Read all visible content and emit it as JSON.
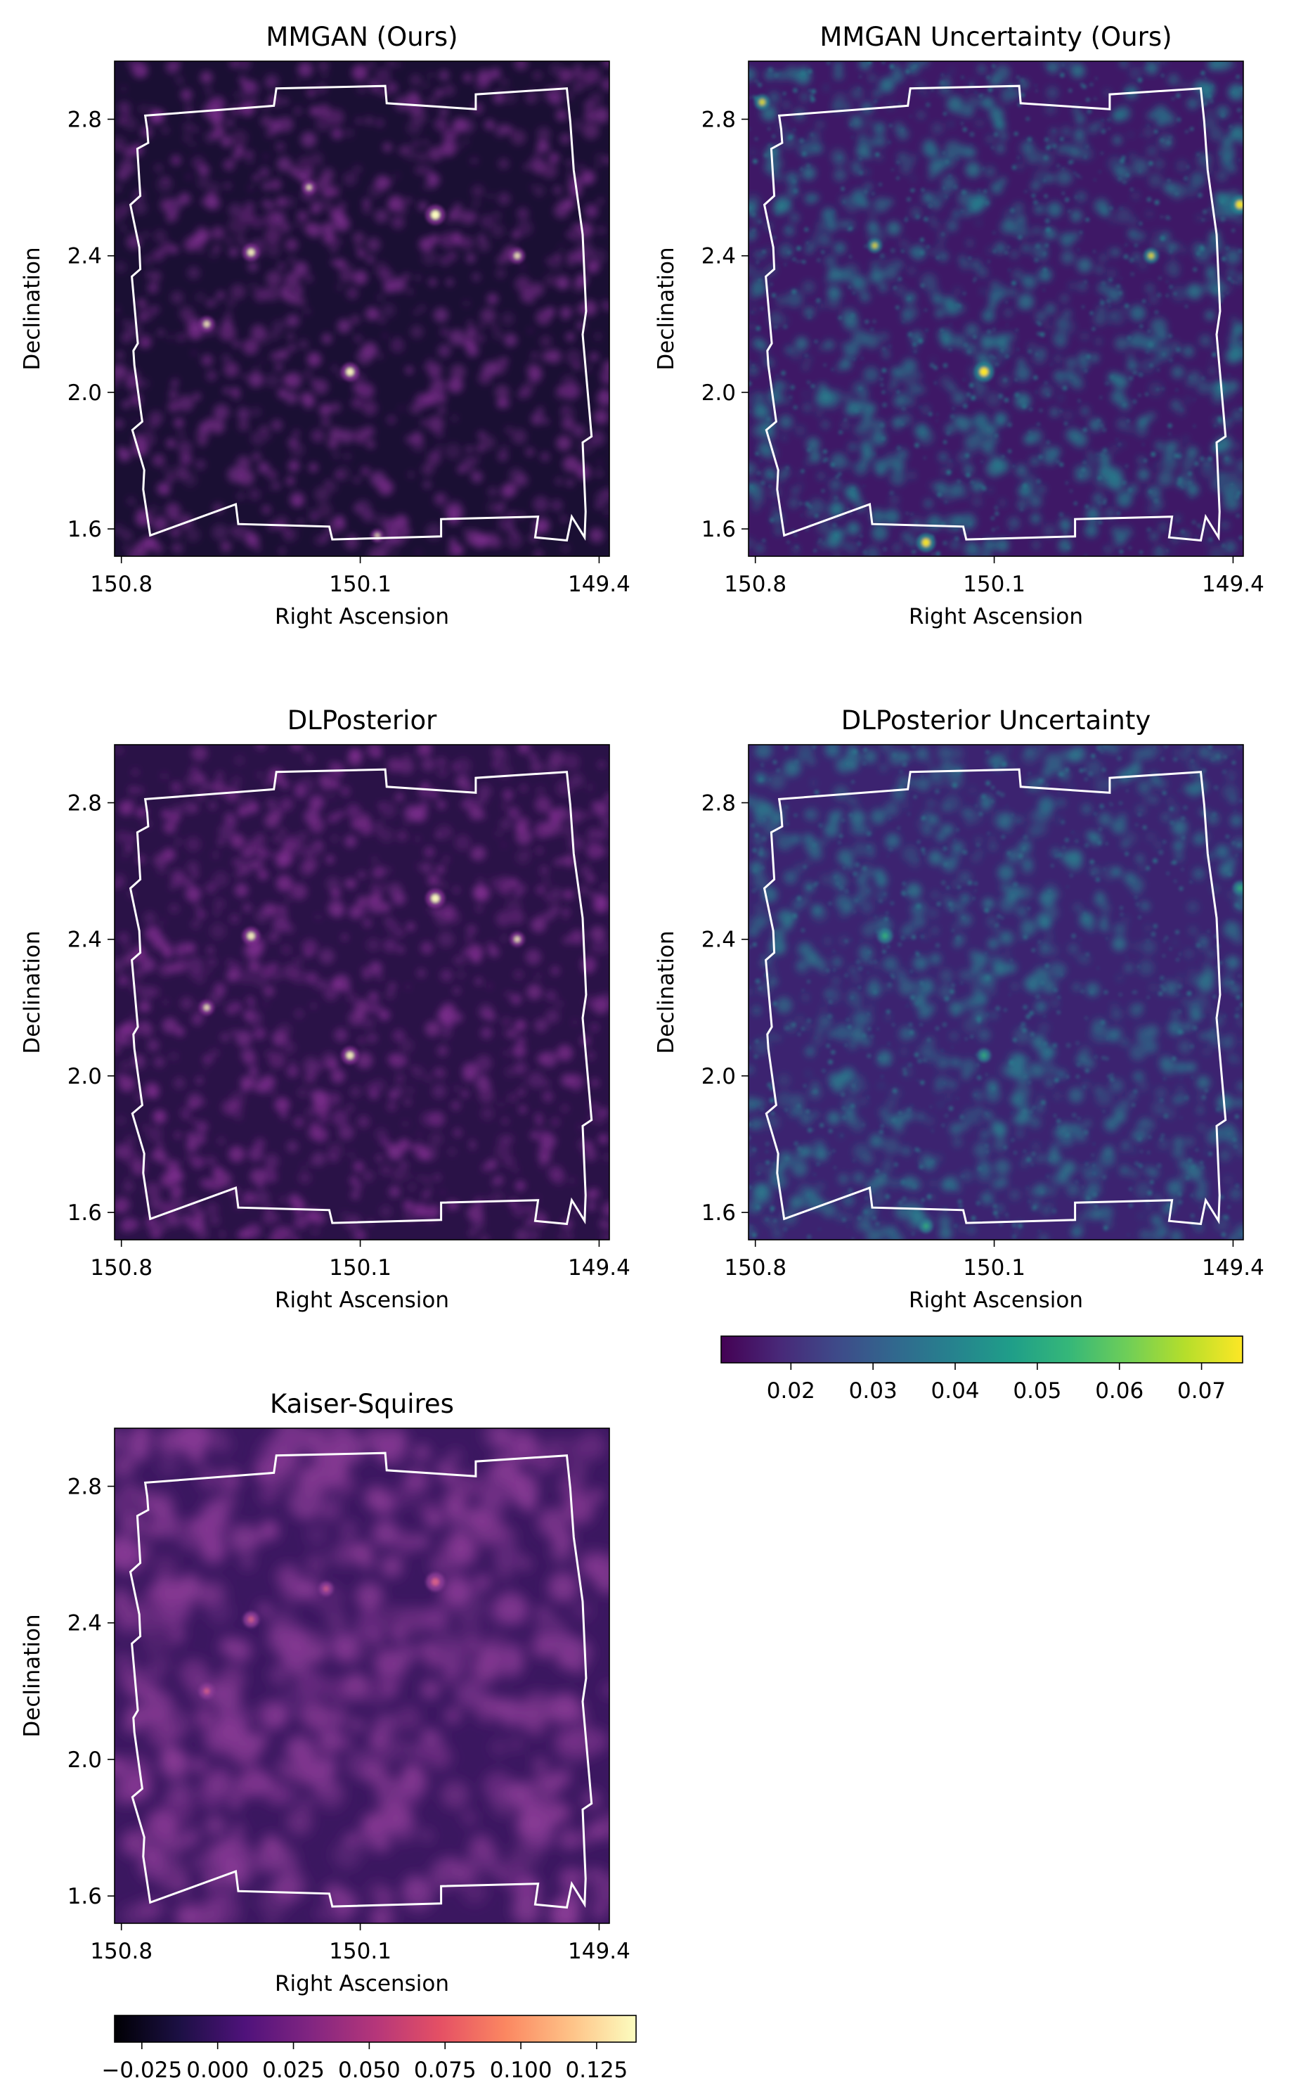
{
  "figure": {
    "background": "#ffffff",
    "footprint_color": "#ffffff"
  },
  "chart_data": [
    {
      "type": "heatmap",
      "id": "mmgan",
      "title": "MMGAN (Ours)",
      "xlabel": "Right Ascension",
      "ylabel": "Declination",
      "xticks": [
        "150.8",
        "150.1",
        "149.4"
      ],
      "yticks": [
        "2.8",
        "2.4",
        "2.0",
        "1.6"
      ],
      "xlim": [
        150.82,
        149.37
      ],
      "ylim": [
        1.52,
        2.97
      ],
      "colormap": "magma",
      "colors": {
        "background": "#1a0f33",
        "clumps": "#7a2d8c",
        "peak": "#fcfdbf"
      },
      "hotspots": [
        {
          "ra": 149.88,
          "dec": 2.52,
          "level": 1.0
        },
        {
          "ra": 150.42,
          "dec": 2.41,
          "level": 0.75
        },
        {
          "ra": 150.55,
          "dec": 2.2,
          "level": 0.6
        },
        {
          "ra": 150.13,
          "dec": 2.06,
          "level": 0.85
        },
        {
          "ra": 149.64,
          "dec": 2.4,
          "level": 0.6
        },
        {
          "ra": 150.25,
          "dec": 2.6,
          "level": 0.45
        },
        {
          "ra": 150.05,
          "dec": 1.58,
          "level": 0.4
        }
      ]
    },
    {
      "type": "heatmap",
      "id": "mmgan-uncertainty",
      "title": "MMGAN Uncertainty (Ours)",
      "xlabel": "Right Ascension",
      "ylabel": "Declination",
      "xticks": [
        "150.8",
        "150.1",
        "149.4"
      ],
      "yticks": [
        "2.8",
        "2.4",
        "2.0",
        "1.6"
      ],
      "xlim": [
        150.82,
        149.37
      ],
      "ylim": [
        1.52,
        2.97
      ],
      "colormap": "viridis",
      "colors": {
        "background": "#3e1866",
        "clumps": "#26818e",
        "peak": "#fde725"
      },
      "hotspots": [
        {
          "ra": 150.13,
          "dec": 2.06,
          "level": 1.0
        },
        {
          "ra": 149.38,
          "dec": 2.55,
          "level": 0.9
        },
        {
          "ra": 150.3,
          "dec": 1.56,
          "level": 0.9
        },
        {
          "ra": 150.78,
          "dec": 2.85,
          "level": 0.6
        },
        {
          "ra": 149.64,
          "dec": 2.4,
          "level": 0.55
        },
        {
          "ra": 150.45,
          "dec": 2.43,
          "level": 0.5
        }
      ]
    },
    {
      "type": "heatmap",
      "id": "dlposterior",
      "title": "DLPosterior",
      "xlabel": "Right Ascension",
      "ylabel": "Declination",
      "xticks": [
        "150.8",
        "150.1",
        "149.4"
      ],
      "yticks": [
        "2.8",
        "2.4",
        "2.0",
        "1.6"
      ],
      "xlim": [
        150.82,
        149.37
      ],
      "ylim": [
        1.52,
        2.97
      ],
      "colormap": "magma",
      "colors": {
        "background": "#2a1247",
        "clumps": "#7e2e8e",
        "peak": "#fcfdbf"
      },
      "hotspots": [
        {
          "ra": 149.88,
          "dec": 2.52,
          "level": 0.95
        },
        {
          "ra": 150.42,
          "dec": 2.41,
          "level": 0.8
        },
        {
          "ra": 150.55,
          "dec": 2.2,
          "level": 0.55
        },
        {
          "ra": 150.13,
          "dec": 2.06,
          "level": 0.8
        },
        {
          "ra": 149.64,
          "dec": 2.4,
          "level": 0.55
        }
      ]
    },
    {
      "type": "heatmap",
      "id": "dlposterior-uncertainty",
      "title": "DLPosterior Uncertainty",
      "xlabel": "Right Ascension",
      "ylabel": "Declination",
      "xticks": [
        "150.8",
        "150.1",
        "149.4"
      ],
      "yticks": [
        "2.8",
        "2.4",
        "2.0",
        "1.6"
      ],
      "xlim": [
        150.82,
        149.37
      ],
      "ylim": [
        1.52,
        2.97
      ],
      "colormap": "viridis",
      "colors": {
        "background": "#3c2370",
        "clumps": "#2b7c8e",
        "peak": "#35b779"
      },
      "hotspots": [
        {
          "ra": 150.42,
          "dec": 2.41,
          "level": 0.6
        },
        {
          "ra": 149.38,
          "dec": 2.55,
          "level": 0.5
        },
        {
          "ra": 150.3,
          "dec": 1.56,
          "level": 0.45
        },
        {
          "ra": 150.13,
          "dec": 2.06,
          "level": 0.45
        }
      ],
      "colorbar": {
        "colormap": "viridis",
        "ticks": [
          "0.02",
          "0.03",
          "0.04",
          "0.05",
          "0.06",
          "0.07"
        ],
        "tick_values": [
          0.02,
          0.03,
          0.04,
          0.05,
          0.06,
          0.07
        ],
        "range": [
          0.0115,
          0.075
        ]
      }
    },
    {
      "type": "heatmap",
      "id": "kaiser-squires",
      "title": "Kaiser-Squires",
      "xlabel": "Right Ascension",
      "ylabel": "Declination",
      "xticks": [
        "150.8",
        "150.1",
        "149.4"
      ],
      "yticks": [
        "2.8",
        "2.4",
        "2.0",
        "1.6"
      ],
      "xlim": [
        150.82,
        149.37
      ],
      "ylim": [
        1.52,
        2.97
      ],
      "colormap": "magma",
      "colors": {
        "background": "#3b1760",
        "clumps": "#8a3b96",
        "peak": "#d8628a"
      },
      "hotspots": [
        {
          "ra": 149.88,
          "dec": 2.52,
          "level": 0.9
        },
        {
          "ra": 150.42,
          "dec": 2.41,
          "level": 0.65
        },
        {
          "ra": 150.55,
          "dec": 2.2,
          "level": 0.6
        },
        {
          "ra": 150.2,
          "dec": 2.5,
          "level": 0.5
        }
      ],
      "colorbar": {
        "colormap": "magma",
        "ticks": [
          "−0.025",
          "0.000",
          "0.025",
          "0.050",
          "0.075",
          "0.100",
          "0.125"
        ],
        "tick_values": [
          -0.025,
          0.0,
          0.025,
          0.05,
          0.075,
          0.1,
          0.125
        ],
        "range": [
          -0.034,
          0.138
        ]
      }
    }
  ]
}
